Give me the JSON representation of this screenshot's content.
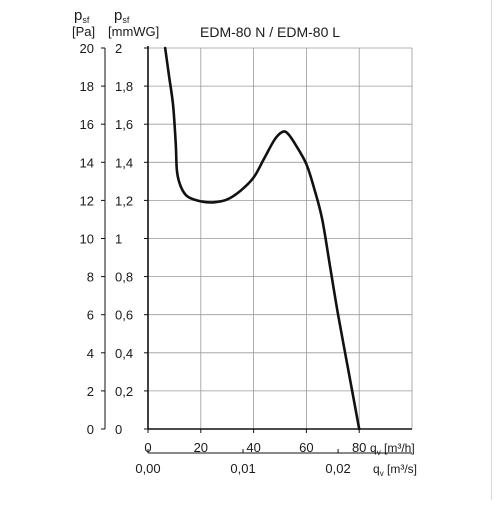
{
  "chart_data": {
    "type": "line",
    "title": "EDM-80 N / EDM-80 L",
    "y_axes": [
      {
        "symbol": "p",
        "subscript": "sf",
        "unit": "[Pa]",
        "ticks": [
          "0",
          "2",
          "4",
          "6",
          "8",
          "10",
          "12",
          "14",
          "16",
          "18",
          "20"
        ],
        "ylim": [
          0,
          20
        ]
      },
      {
        "symbol": "p",
        "subscript": "sf",
        "unit": "[mmWG]",
        "ticks": [
          "0",
          "0,2",
          "0,4",
          "0,6",
          "0,8",
          "1",
          "1,2",
          "1,4",
          "1,6",
          "1,8",
          "2"
        ],
        "ylim": [
          0,
          2
        ]
      }
    ],
    "x_axes": [
      {
        "label": "q",
        "subscript": "v",
        "unit": "[m³/h]",
        "ticks": [
          "0",
          "20",
          "40",
          "60",
          "80"
        ],
        "tick_values": [
          0,
          20,
          40,
          60,
          80
        ],
        "xlim": [
          0,
          100
        ]
      },
      {
        "label": "q",
        "subscript": "v",
        "unit": "[m³/s]",
        "ticks": [
          "0,00",
          "0,01",
          "0,02"
        ],
        "tick_values": [
          0.0,
          0.01,
          0.02
        ],
        "xlim": [
          0,
          0.02778
        ]
      }
    ],
    "grid": true,
    "series": [
      {
        "points": [
          [
            6.5,
            20
          ],
          [
            8,
            18.5
          ],
          [
            9.5,
            17
          ],
          [
            10.5,
            15
          ],
          [
            11,
            13.5
          ],
          [
            12.5,
            12.7
          ],
          [
            15,
            12.2
          ],
          [
            20,
            11.95
          ],
          [
            25,
            11.9
          ],
          [
            30,
            12.05
          ],
          [
            35,
            12.5
          ],
          [
            40,
            13.2
          ],
          [
            44,
            14.2
          ],
          [
            48,
            15.2
          ],
          [
            51,
            15.6
          ],
          [
            53,
            15.5
          ],
          [
            56,
            14.9
          ],
          [
            60,
            13.9
          ],
          [
            63,
            12.6
          ],
          [
            66,
            11
          ],
          [
            69,
            8.5
          ],
          [
            72,
            6
          ],
          [
            76,
            3
          ],
          [
            80,
            0
          ]
        ]
      }
    ]
  },
  "colors": {
    "curve": "#111111",
    "grid": "#9a9a9a",
    "axis": "#111111",
    "text": "#1a1a1a"
  }
}
